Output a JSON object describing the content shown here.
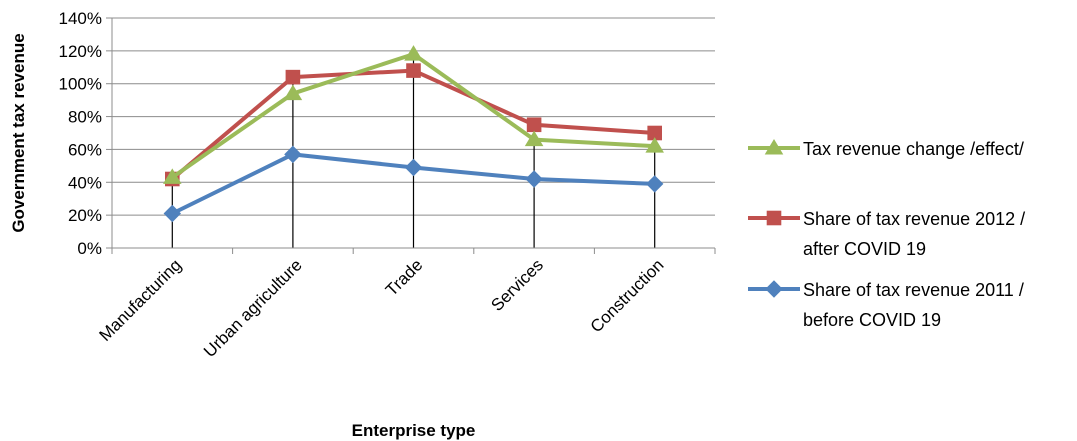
{
  "chart_data": {
    "type": "line",
    "title": "",
    "xlabel": "Enterprise type",
    "ylabel": "Government tax revenue",
    "categories": [
      "Manufacturing",
      "Urban agriculture",
      "Trade",
      "Services",
      "Construction"
    ],
    "ylim": [
      0,
      140
    ],
    "yticks": [
      0,
      20,
      40,
      60,
      80,
      100,
      120,
      140
    ],
    "ytick_format": "%",
    "grid": "horizontal",
    "drop_lines": true,
    "legend_position": "right",
    "series": [
      {
        "name_lines": [
          "Tax revenue change /effect/"
        ],
        "values": [
          43,
          94,
          118,
          66,
          62
        ],
        "color": "#9bbb59",
        "marker": "triangle"
      },
      {
        "name_lines": [
          "Share of tax revenue 2012 /",
          "after COVID 19"
        ],
        "values": [
          42,
          104,
          108,
          75,
          70
        ],
        "color": "#c0504d",
        "marker": "square"
      },
      {
        "name_lines": [
          "Share of tax revenue 2011 /",
          "before COVID 19"
        ],
        "values": [
          21,
          57,
          49,
          42,
          39
        ],
        "color": "#4f81bd",
        "marker": "diamond"
      }
    ]
  }
}
